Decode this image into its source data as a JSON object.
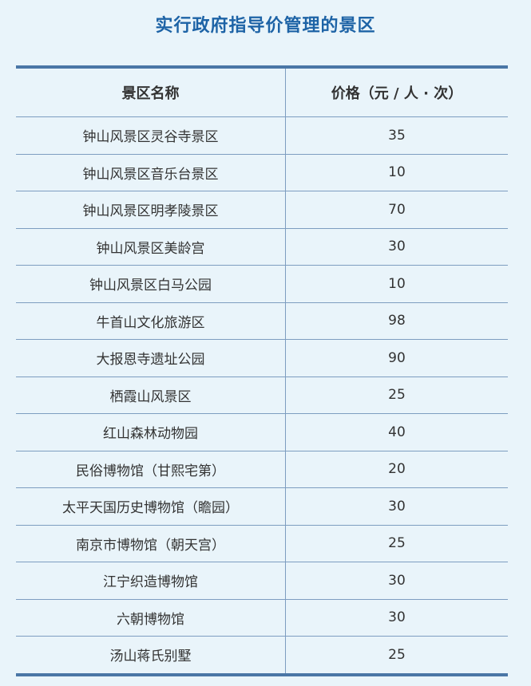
{
  "title": "实行政府指导价管理的景区",
  "table": {
    "headers": [
      "景区名称",
      "价格（元 / 人 · 次）"
    ],
    "rows": [
      [
        "钟山风景区灵谷寺景区",
        "35"
      ],
      [
        "钟山风景区音乐台景区",
        "10"
      ],
      [
        "钟山风景区明孝陵景区",
        "70"
      ],
      [
        "钟山风景区美龄宫",
        "30"
      ],
      [
        "钟山风景区白马公园",
        "10"
      ],
      [
        "牛首山文化旅游区",
        "98"
      ],
      [
        "大报恩寺遗址公园",
        "90"
      ],
      [
        "栖霞山风景区",
        "25"
      ],
      [
        "红山森林动物园",
        "40"
      ],
      [
        "民俗博物馆（甘熙宅第）",
        "20"
      ],
      [
        "太平天国历史博物馆（瞻园）",
        "30"
      ],
      [
        "南京市博物馆（朝天宫）",
        "25"
      ],
      [
        "江宁织造博物馆",
        "30"
      ],
      [
        "六朝博物馆",
        "30"
      ],
      [
        "汤山蒋氏别墅",
        "25"
      ]
    ]
  },
  "colors": {
    "title": "#1d63a6",
    "rule": "#4a76a6",
    "background": "#e9f4fa"
  }
}
